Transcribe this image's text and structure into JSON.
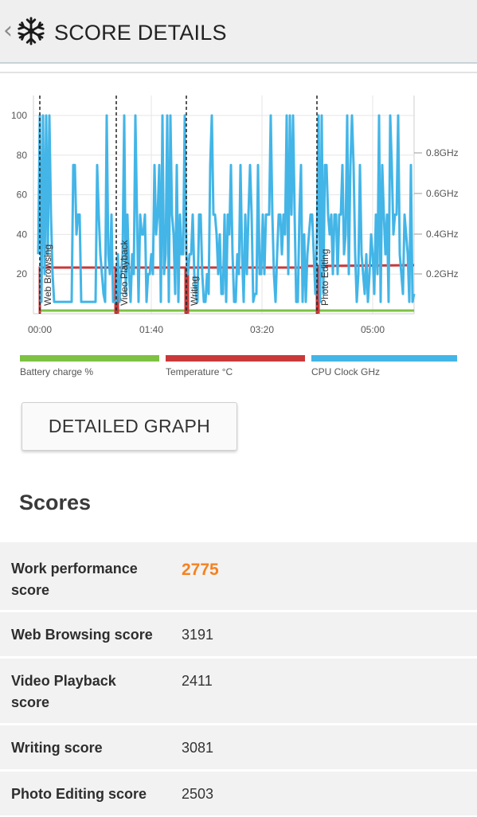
{
  "header": {
    "title": "SCORE DETAILS",
    "back_glyph": "‹",
    "icon": "snowflake-icon"
  },
  "chart_data": {
    "type": "line",
    "x_ticks": [
      "00:00",
      "01:40",
      "03:20",
      "05:00"
    ],
    "y_left_ticks": [
      100,
      80,
      60,
      40,
      20
    ],
    "y_right_ticks": [
      "0.8GHz",
      "0.6GHz",
      "0.4GHz",
      "0.2GHz"
    ],
    "segments": [
      "Web Browsing",
      "Video Playback",
      "Writing",
      "Photo Editing"
    ],
    "series": [
      {
        "name": "Battery charge %",
        "color": "#7dc243"
      },
      {
        "name": "Temperature °C",
        "color": "#c9393a"
      },
      {
        "name": "CPU Clock GHz",
        "color": "#43b5e7"
      }
    ]
  },
  "detail_button": "DETAILED GRAPH",
  "scores": {
    "heading": "Scores",
    "rows": [
      {
        "label": "Work performance score",
        "value": "2775"
      },
      {
        "label": "Web Browsing score",
        "value": "3191"
      },
      {
        "label": "Video Playback score",
        "value": "2411"
      },
      {
        "label": "Writing score",
        "value": "3081"
      },
      {
        "label": "Photo Editing score",
        "value": "2503"
      }
    ]
  }
}
